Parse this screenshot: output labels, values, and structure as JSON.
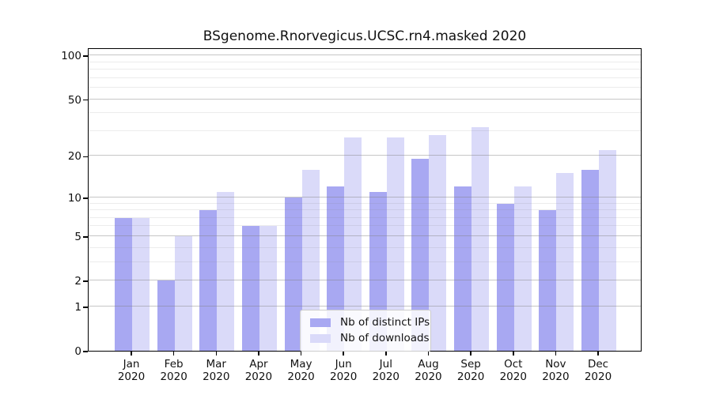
{
  "figure": {
    "title": "BSgenome.Rnorvegicus.UCSC.rn4.masked 2020"
  },
  "chart_data": {
    "type": "bar",
    "title": "BSgenome.Rnorvegicus.UCSC.rn4.masked 2020",
    "categories": [
      "Jan",
      "Feb",
      "Mar",
      "Apr",
      "May",
      "Jun",
      "Jul",
      "Aug",
      "Sep",
      "Oct",
      "Nov",
      "Dec"
    ],
    "category_year": "2020",
    "series": [
      {
        "name": "Nb of distinct IPs",
        "color": "#a8a8f2",
        "values": [
          7,
          2,
          8,
          6,
          10,
          12,
          11,
          19,
          12,
          9,
          8,
          16
        ]
      },
      {
        "name": "Nb of downloads",
        "color": "#dadaf9",
        "values": [
          7,
          5,
          11,
          6,
          16,
          27,
          27,
          28,
          32,
          12,
          15,
          22
        ]
      }
    ],
    "yscale": "log1p",
    "yticks": [
      0,
      1,
      2,
      5,
      10,
      20,
      50,
      100
    ],
    "yticks_minor": [
      3,
      4,
      6,
      7,
      8,
      9,
      30,
      40,
      60,
      70,
      80,
      90
    ],
    "ylim": [
      0,
      113
    ],
    "grid": true,
    "legend_position": "lower center"
  }
}
